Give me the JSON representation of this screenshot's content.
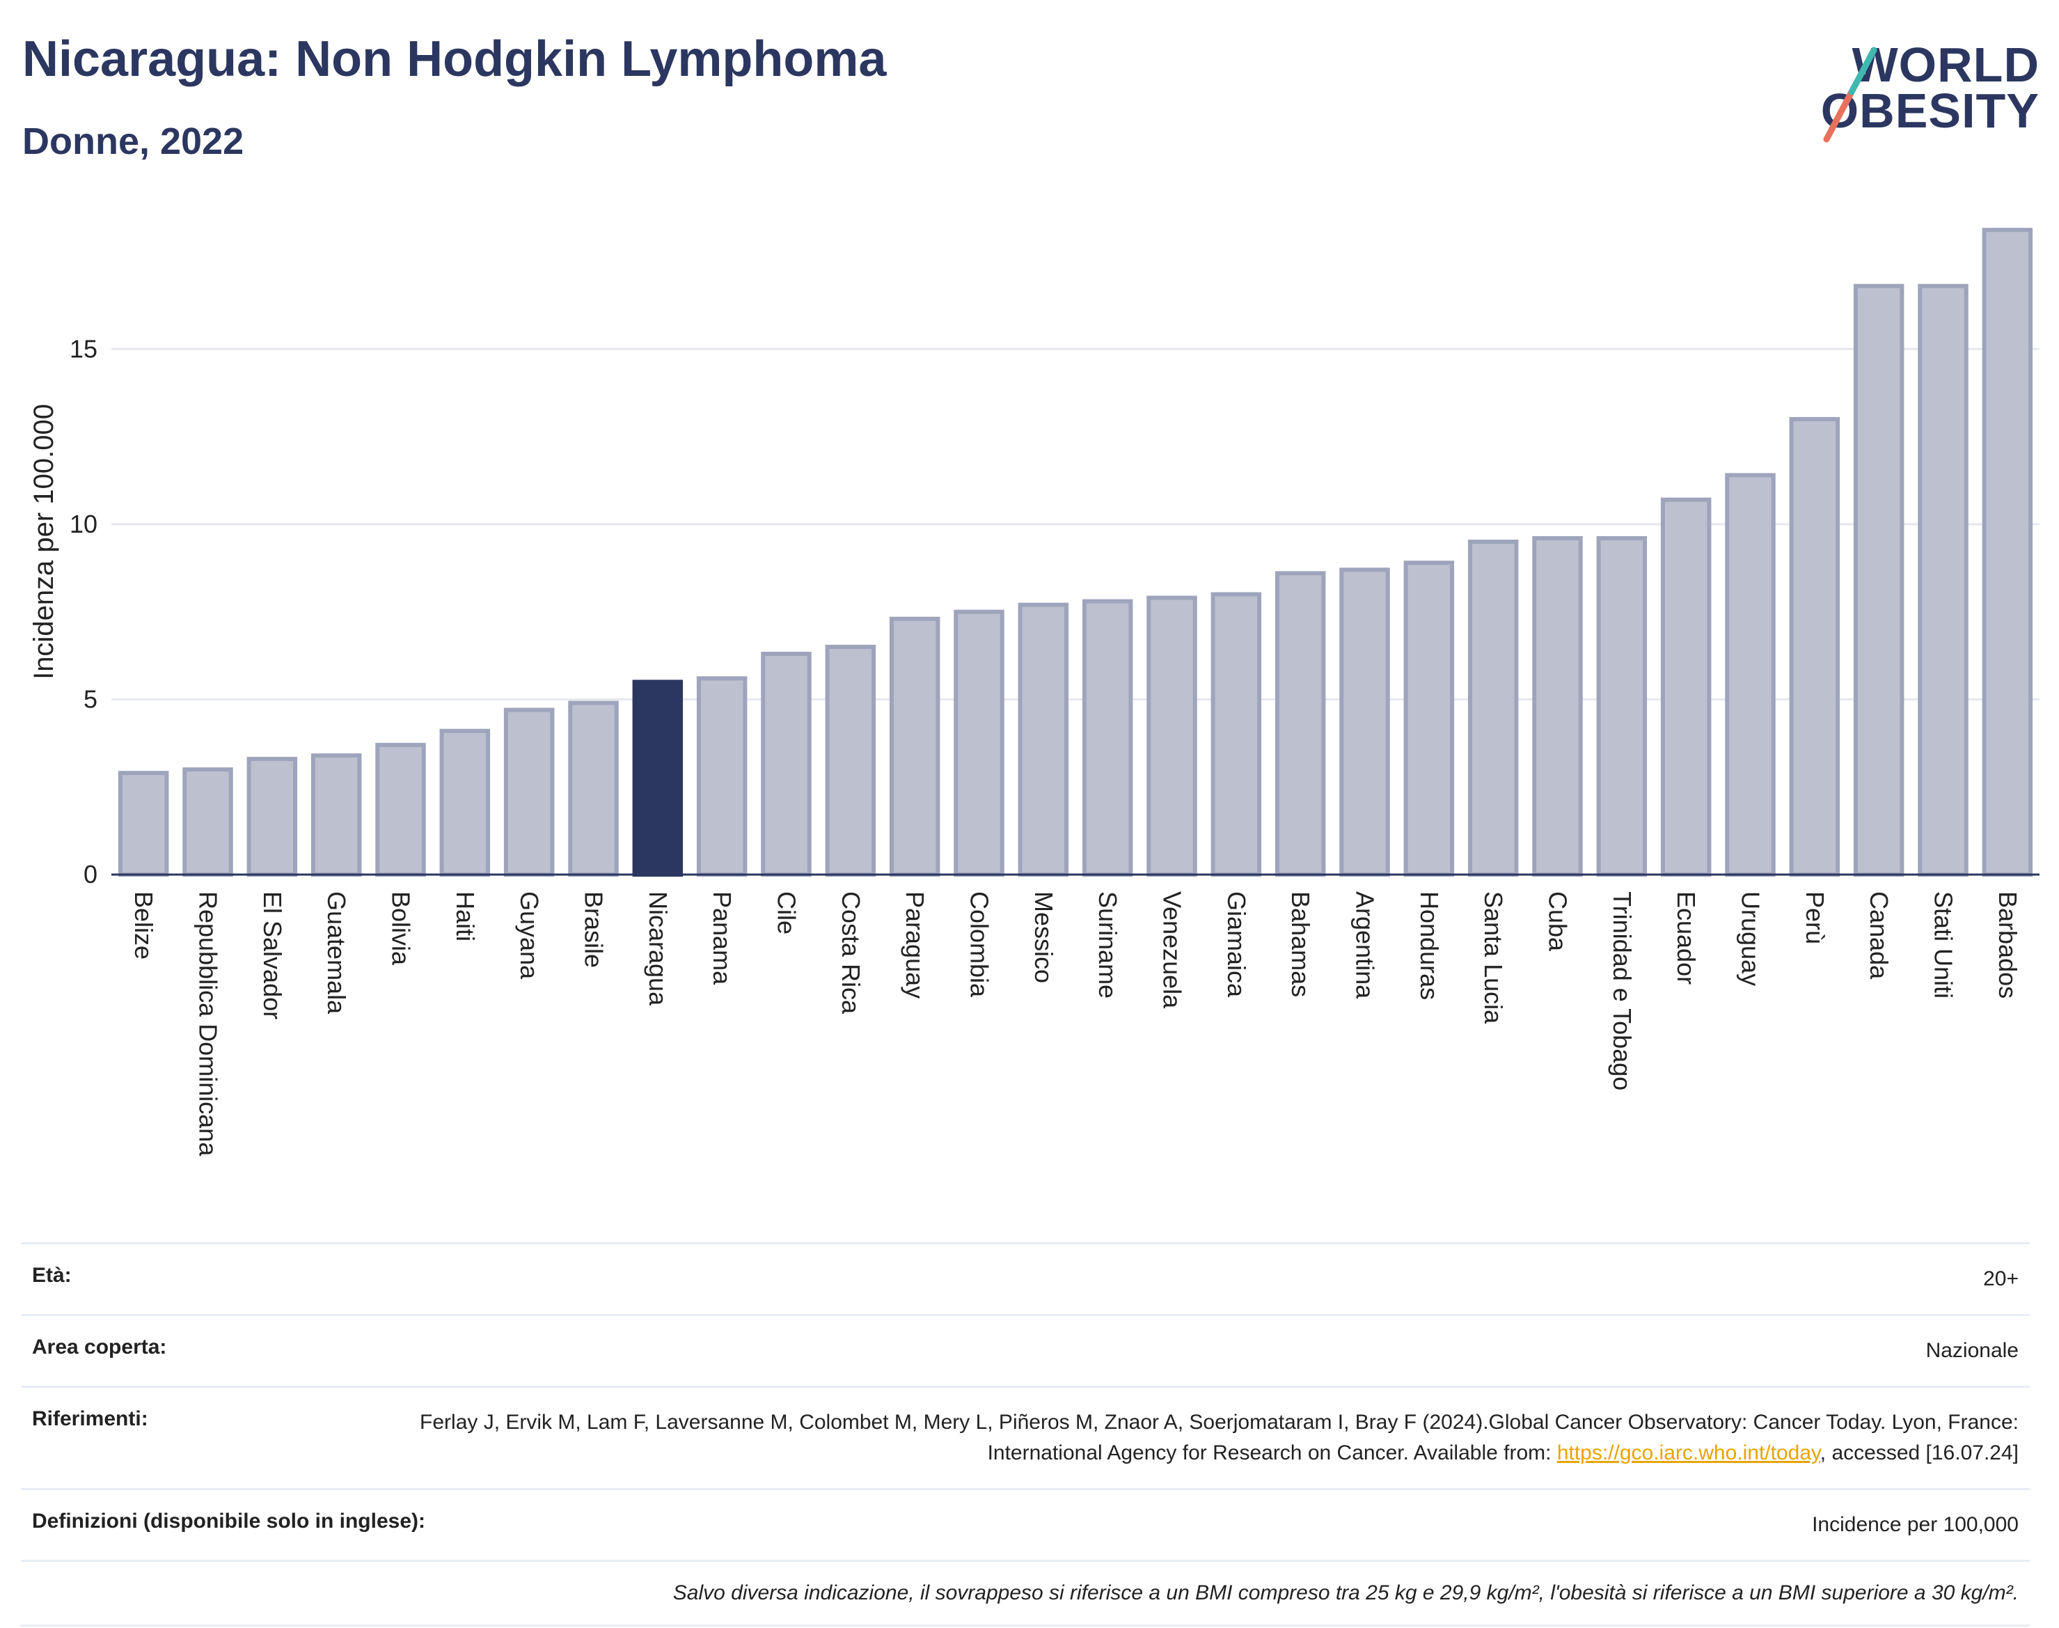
{
  "header": {
    "title": "Nicaragua: Non Hodgkin Lymphoma",
    "subtitle": "Donne, 2022"
  },
  "logo": {
    "line1": "WORLD",
    "line2": "OBESITY"
  },
  "colors": {
    "bar": "#bcc0cf",
    "bar_stroke": "#9ea4bb",
    "highlight": "#2b3760",
    "grid": "#e6e8ee",
    "axis": "#2b3760"
  },
  "chart_data": {
    "type": "bar",
    "ylabel": "Incidenza per 100.000",
    "xlabel": "",
    "ylim": [
      0,
      19
    ],
    "yticks": [
      0,
      5,
      10,
      15
    ],
    "grid": true,
    "highlight": "Nicaragua",
    "categories": [
      "Belize",
      "Repubblica Dominicana",
      "El Salvador",
      "Guatemala",
      "Bolivia",
      "Haiti",
      "Guyana",
      "Brasile",
      "Nicaragua",
      "Panama",
      "Cile",
      "Costa Rica",
      "Paraguay",
      "Colombia",
      "Messico",
      "Suriname",
      "Venezuela",
      "Giamaica",
      "Bahamas",
      "Argentina",
      "Honduras",
      "Santa Lucia",
      "Cuba",
      "Trinidad e Tobago",
      "Ecuador",
      "Uruguay",
      "Perù",
      "Canada",
      "Stati Uniti",
      "Barbados"
    ],
    "values": [
      2.9,
      3.0,
      3.3,
      3.4,
      3.7,
      4.1,
      4.7,
      4.9,
      5.5,
      5.6,
      6.3,
      6.5,
      7.3,
      7.5,
      7.7,
      7.8,
      7.9,
      8.0,
      8.6,
      8.7,
      8.9,
      9.5,
      9.6,
      9.6,
      10.7,
      11.4,
      13.0,
      16.8,
      16.8,
      18.4
    ]
  },
  "info": {
    "age_label": "Età:",
    "age_value": "20+",
    "area_label": "Area coperta:",
    "area_value": "Nazionale",
    "refs_label": "Riferimenti:",
    "refs_text1": "Ferlay J, Ervik M, Lam F, Laversanne M, Colombet M, Mery L, Piñeros M, Znaor A, Soerjomataram I, Bray F (2024).Global Cancer Observatory: Cancer Today. Lyon, France: International Agency for Research on Cancer. Available from: ",
    "refs_link": "https://gco.iarc.who.int/today",
    "refs_text2": ", accessed [16.07.24]",
    "defs_label": "Definizioni (disponibile solo in inglese):",
    "defs_value": "Incidence per 100,000",
    "footnote": "Salvo diversa indicazione, il sovrappeso si riferisce a un BMI compreso tra 25 kg e 29,9 kg/m², l'obesità si riferisce a un BMI superiore a 30 kg/m²."
  }
}
